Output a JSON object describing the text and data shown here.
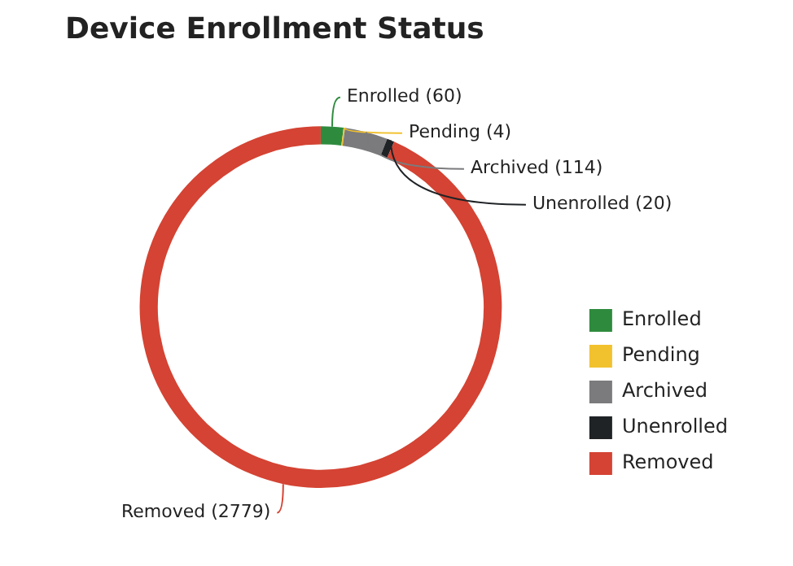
{
  "chart_data": {
    "type": "donut",
    "title": "Device Enrollment Status",
    "categories": [
      "Enrolled",
      "Pending",
      "Archived",
      "Unenrolled",
      "Removed"
    ],
    "values": [
      60,
      4,
      114,
      20,
      2779
    ],
    "colors": [
      "#2e8b3e",
      "#f2c12e",
      "#7b7b7d",
      "#1f2326",
      "#d44333"
    ],
    "value_labels": [
      "Enrolled (60)",
      "Pending (4)",
      "Archived (114)",
      "Unenrolled (20)",
      "Removed (2779)"
    ],
    "legend": "right"
  }
}
